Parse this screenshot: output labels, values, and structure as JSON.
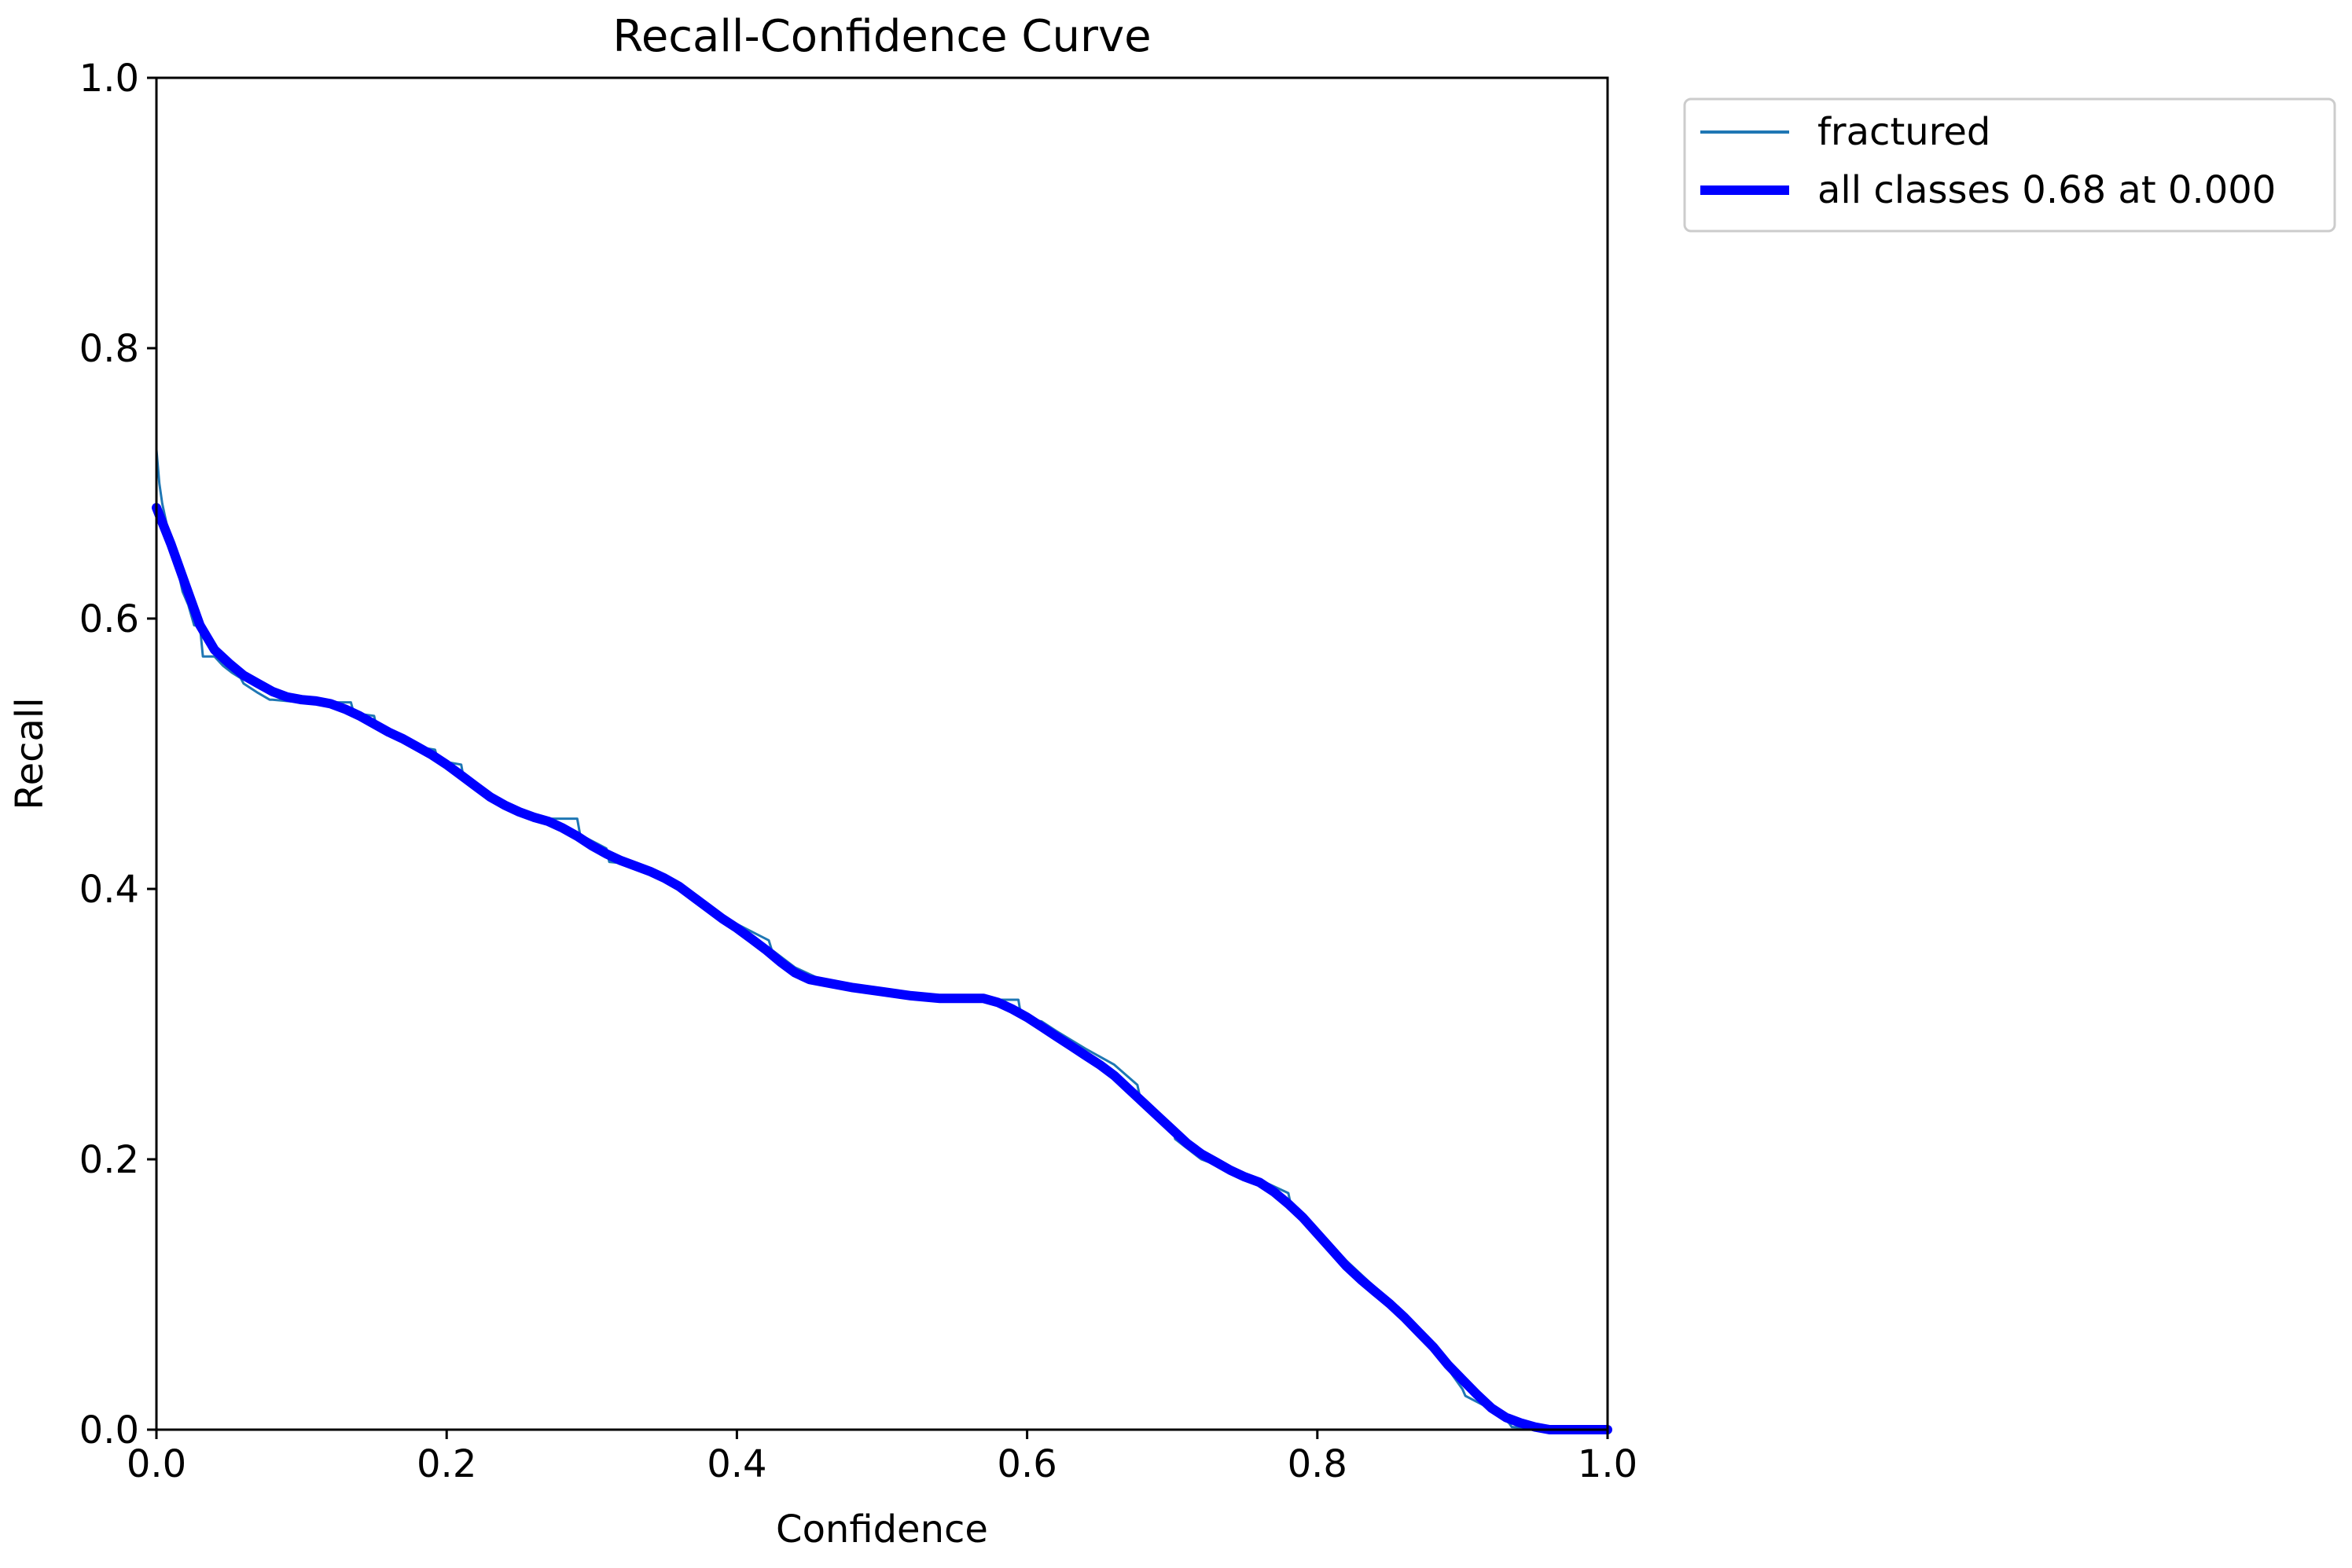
{
  "chart_data": {
    "type": "line",
    "title": "Recall-Confidence Curve",
    "xlabel": "Confidence",
    "ylabel": "Recall",
    "xlim": [
      0,
      1
    ],
    "ylim": [
      0,
      1
    ],
    "xticks": [
      0.0,
      0.2,
      0.4,
      0.6,
      0.8,
      1.0
    ],
    "yticks": [
      0.0,
      0.2,
      0.4,
      0.6,
      0.8,
      1.0
    ],
    "xtick_labels": [
      "0.0",
      "0.2",
      "0.4",
      "0.6",
      "0.8",
      "1.0"
    ],
    "ytick_labels": [
      "0.0",
      "0.2",
      "0.4",
      "0.6",
      "0.8",
      "1.0"
    ],
    "grid": false,
    "legend_position": "outside-top-right",
    "series": [
      {
        "name": "fractured",
        "color": "#1f77b4",
        "style": "thin-step",
        "x": [
          0.0,
          0.002,
          0.004,
          0.006,
          0.008,
          0.01,
          0.014,
          0.018,
          0.02,
          0.022,
          0.026,
          0.03,
          0.032,
          0.034,
          0.04,
          0.046,
          0.052,
          0.058,
          0.06,
          0.07,
          0.078,
          0.08,
          0.1,
          0.12,
          0.134,
          0.136,
          0.15,
          0.152,
          0.17,
          0.18,
          0.192,
          0.194,
          0.21,
          0.212,
          0.23,
          0.25,
          0.27,
          0.272,
          0.29,
          0.292,
          0.31,
          0.312,
          0.33,
          0.35,
          0.36,
          0.38,
          0.4,
          0.422,
          0.424,
          0.44,
          0.46,
          0.5,
          0.54,
          0.57,
          0.594,
          0.596,
          0.61,
          0.62,
          0.64,
          0.66,
          0.676,
          0.678,
          0.7,
          0.702,
          0.72,
          0.74,
          0.76,
          0.78,
          0.782,
          0.8,
          0.82,
          0.84,
          0.86,
          0.88,
          0.9,
          0.902,
          0.92,
          0.932,
          0.934,
          0.95,
          0.96,
          1.0
        ],
        "y": [
          0.725,
          0.7,
          0.685,
          0.675,
          0.665,
          0.655,
          0.64,
          0.62,
          0.615,
          0.61,
          0.595,
          0.594,
          0.572,
          0.572,
          0.572,
          0.565,
          0.56,
          0.556,
          0.552,
          0.545,
          0.54,
          0.54,
          0.538,
          0.538,
          0.538,
          0.53,
          0.528,
          0.518,
          0.512,
          0.505,
          0.503,
          0.495,
          0.492,
          0.48,
          0.47,
          0.458,
          0.452,
          0.452,
          0.452,
          0.44,
          0.43,
          0.42,
          0.418,
          0.41,
          0.403,
          0.388,
          0.374,
          0.362,
          0.355,
          0.342,
          0.332,
          0.326,
          0.32,
          0.318,
          0.318,
          0.305,
          0.302,
          0.295,
          0.282,
          0.27,
          0.255,
          0.245,
          0.225,
          0.215,
          0.2,
          0.192,
          0.185,
          0.175,
          0.165,
          0.148,
          0.125,
          0.105,
          0.085,
          0.06,
          0.03,
          0.025,
          0.015,
          0.005,
          0.002,
          0.001,
          0.0,
          0.0
        ]
      },
      {
        "name": "all classes 0.68 at 0.000",
        "color": "#0000ff",
        "style": "thick-smooth",
        "x": [
          0.0,
          0.01,
          0.02,
          0.03,
          0.04,
          0.05,
          0.06,
          0.07,
          0.08,
          0.09,
          0.1,
          0.11,
          0.12,
          0.13,
          0.14,
          0.15,
          0.16,
          0.17,
          0.18,
          0.19,
          0.2,
          0.21,
          0.22,
          0.23,
          0.24,
          0.25,
          0.26,
          0.27,
          0.28,
          0.29,
          0.3,
          0.31,
          0.32,
          0.33,
          0.34,
          0.35,
          0.36,
          0.37,
          0.38,
          0.39,
          0.4,
          0.41,
          0.42,
          0.43,
          0.44,
          0.45,
          0.46,
          0.48,
          0.5,
          0.52,
          0.54,
          0.56,
          0.57,
          0.58,
          0.59,
          0.6,
          0.61,
          0.62,
          0.63,
          0.64,
          0.65,
          0.66,
          0.67,
          0.68,
          0.69,
          0.7,
          0.71,
          0.72,
          0.73,
          0.74,
          0.75,
          0.76,
          0.77,
          0.78,
          0.79,
          0.8,
          0.81,
          0.82,
          0.83,
          0.84,
          0.85,
          0.86,
          0.87,
          0.88,
          0.89,
          0.9,
          0.91,
          0.92,
          0.93,
          0.94,
          0.95,
          0.96,
          0.97,
          0.98,
          0.99,
          1.0
        ],
        "y": [
          0.682,
          0.655,
          0.625,
          0.595,
          0.577,
          0.567,
          0.558,
          0.552,
          0.546,
          0.542,
          0.54,
          0.539,
          0.537,
          0.533,
          0.528,
          0.522,
          0.516,
          0.511,
          0.505,
          0.499,
          0.492,
          0.484,
          0.476,
          0.468,
          0.462,
          0.457,
          0.453,
          0.45,
          0.445,
          0.439,
          0.432,
          0.426,
          0.421,
          0.417,
          0.413,
          0.408,
          0.402,
          0.394,
          0.386,
          0.378,
          0.371,
          0.363,
          0.355,
          0.346,
          0.338,
          0.333,
          0.331,
          0.327,
          0.324,
          0.321,
          0.319,
          0.319,
          0.319,
          0.316,
          0.311,
          0.305,
          0.298,
          0.291,
          0.284,
          0.277,
          0.27,
          0.262,
          0.252,
          0.242,
          0.232,
          0.222,
          0.212,
          0.204,
          0.198,
          0.192,
          0.187,
          0.183,
          0.176,
          0.167,
          0.157,
          0.145,
          0.133,
          0.121,
          0.111,
          0.102,
          0.093,
          0.083,
          0.072,
          0.061,
          0.048,
          0.037,
          0.026,
          0.016,
          0.009,
          0.005,
          0.002,
          0.0,
          0.0,
          0.0,
          0.0,
          0.0
        ]
      }
    ]
  }
}
